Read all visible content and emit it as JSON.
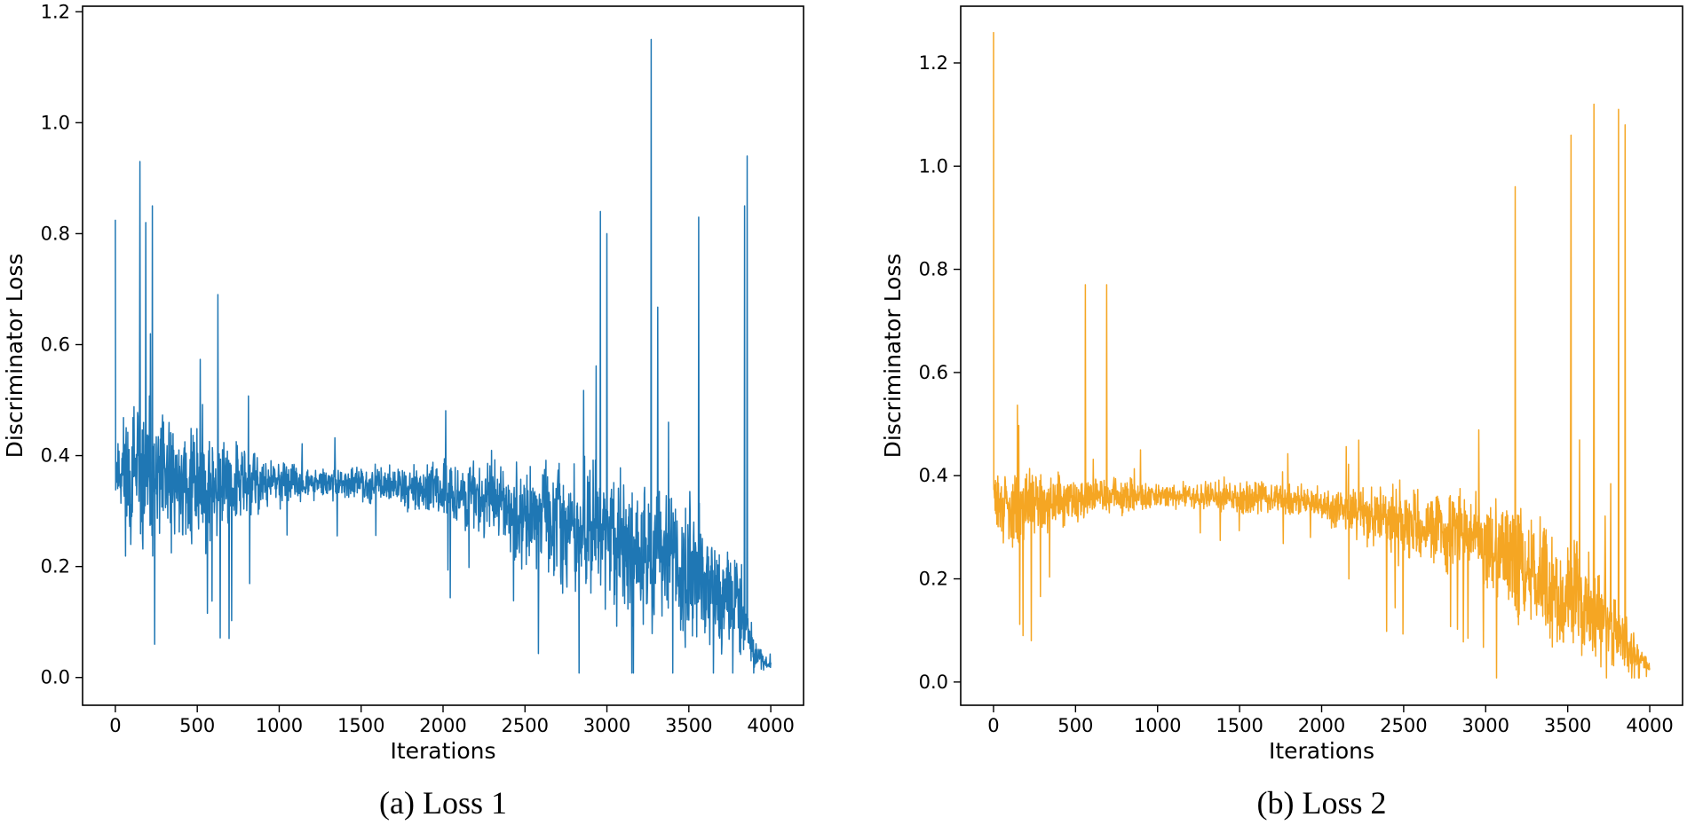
{
  "chart_data": [
    {
      "type": "line",
      "title": "",
      "caption": "(a) Loss 1",
      "xlabel": "Iterations",
      "ylabel": "Discriminator Loss",
      "xlim": [
        -200,
        4200
      ],
      "ylim": [
        -0.05,
        1.21
      ],
      "xticks": [
        0,
        500,
        1000,
        1500,
        2000,
        2500,
        3000,
        3500,
        4000
      ],
      "yticks": [
        0.0,
        0.2,
        0.4,
        0.6,
        0.8,
        1.0,
        1.2
      ],
      "ytick_labels": [
        "0.0",
        "0.2",
        "0.4",
        "0.6",
        "0.8",
        "1.0",
        "1.2"
      ],
      "color": "#1f77b4",
      "grid": false,
      "series": [
        {
          "name": "Loss 1",
          "envelope": [
            {
              "x": 0,
              "center": 0.38,
              "spread": 0.08
            },
            {
              "x": 100,
              "center": 0.36,
              "spread": 0.17
            },
            {
              "x": 250,
              "center": 0.35,
              "spread": 0.15
            },
            {
              "x": 600,
              "center": 0.35,
              "spread": 0.12
            },
            {
              "x": 900,
              "center": 0.35,
              "spread": 0.06
            },
            {
              "x": 1200,
              "center": 0.35,
              "spread": 0.03
            },
            {
              "x": 1600,
              "center": 0.35,
              "spread": 0.035
            },
            {
              "x": 1900,
              "center": 0.34,
              "spread": 0.05
            },
            {
              "x": 2300,
              "center": 0.32,
              "spread": 0.09
            },
            {
              "x": 2900,
              "center": 0.26,
              "spread": 0.13
            },
            {
              "x": 3300,
              "center": 0.22,
              "spread": 0.17
            },
            {
              "x": 3800,
              "center": 0.13,
              "spread": 0.11
            },
            {
              "x": 3900,
              "center": 0.04,
              "spread": 0.03
            },
            {
              "x": 4000,
              "center": 0.02,
              "spread": 0.008
            }
          ],
          "spikes": [
            {
              "x": 0,
              "y": 0.825
            },
            {
              "x": 150,
              "y": 0.93
            },
            {
              "x": 185,
              "y": 0.82
            },
            {
              "x": 225,
              "y": 0.85
            },
            {
              "x": 240,
              "y": 0.06
            },
            {
              "x": 2960,
              "y": 0.84
            },
            {
              "x": 3000,
              "y": 0.8
            },
            {
              "x": 3270,
              "y": 1.15
            },
            {
              "x": 3560,
              "y": 0.83
            },
            {
              "x": 3840,
              "y": 0.85
            },
            {
              "x": 3855,
              "y": 0.94
            }
          ]
        }
      ]
    },
    {
      "type": "line",
      "title": "",
      "caption": "(b) Loss 2",
      "xlabel": "Iterations",
      "ylabel": "Discriminator Loss",
      "xlim": [
        -200,
        4200
      ],
      "ylim": [
        -0.045,
        1.31
      ],
      "xticks": [
        0,
        500,
        1000,
        1500,
        2000,
        2500,
        3000,
        3500,
        4000
      ],
      "yticks": [
        0.0,
        0.2,
        0.4,
        0.6,
        0.8,
        1.0,
        1.2
      ],
      "ytick_labels": [
        "0.0",
        "0.2",
        "0.4",
        "0.6",
        "0.8",
        "1.0",
        "1.2"
      ],
      "color": "#f5a623",
      "grid": false,
      "series": [
        {
          "name": "Loss 2",
          "envelope": [
            {
              "x": 0,
              "center": 0.36,
              "spread": 0.05
            },
            {
              "x": 100,
              "center": 0.33,
              "spread": 0.1
            },
            {
              "x": 250,
              "center": 0.35,
              "spread": 0.07
            },
            {
              "x": 600,
              "center": 0.36,
              "spread": 0.05
            },
            {
              "x": 1000,
              "center": 0.36,
              "spread": 0.03
            },
            {
              "x": 1600,
              "center": 0.36,
              "spread": 0.035
            },
            {
              "x": 2100,
              "center": 0.34,
              "spread": 0.04
            },
            {
              "x": 2400,
              "center": 0.31,
              "spread": 0.08
            },
            {
              "x": 2900,
              "center": 0.29,
              "spread": 0.09
            },
            {
              "x": 3300,
              "center": 0.2,
              "spread": 0.16
            },
            {
              "x": 3700,
              "center": 0.13,
              "spread": 0.12
            },
            {
              "x": 3900,
              "center": 0.06,
              "spread": 0.05
            },
            {
              "x": 4000,
              "center": 0.03,
              "spread": 0.015
            }
          ],
          "spikes": [
            {
              "x": 0,
              "y": 1.26
            },
            {
              "x": 180,
              "y": 0.09
            },
            {
              "x": 230,
              "y": 0.08
            },
            {
              "x": 560,
              "y": 0.77
            },
            {
              "x": 690,
              "y": 0.77
            },
            {
              "x": 3180,
              "y": 0.96
            },
            {
              "x": 3520,
              "y": 1.06
            },
            {
              "x": 3660,
              "y": 1.12
            },
            {
              "x": 3810,
              "y": 1.11
            },
            {
              "x": 3850,
              "y": 1.08
            }
          ]
        }
      ]
    }
  ]
}
